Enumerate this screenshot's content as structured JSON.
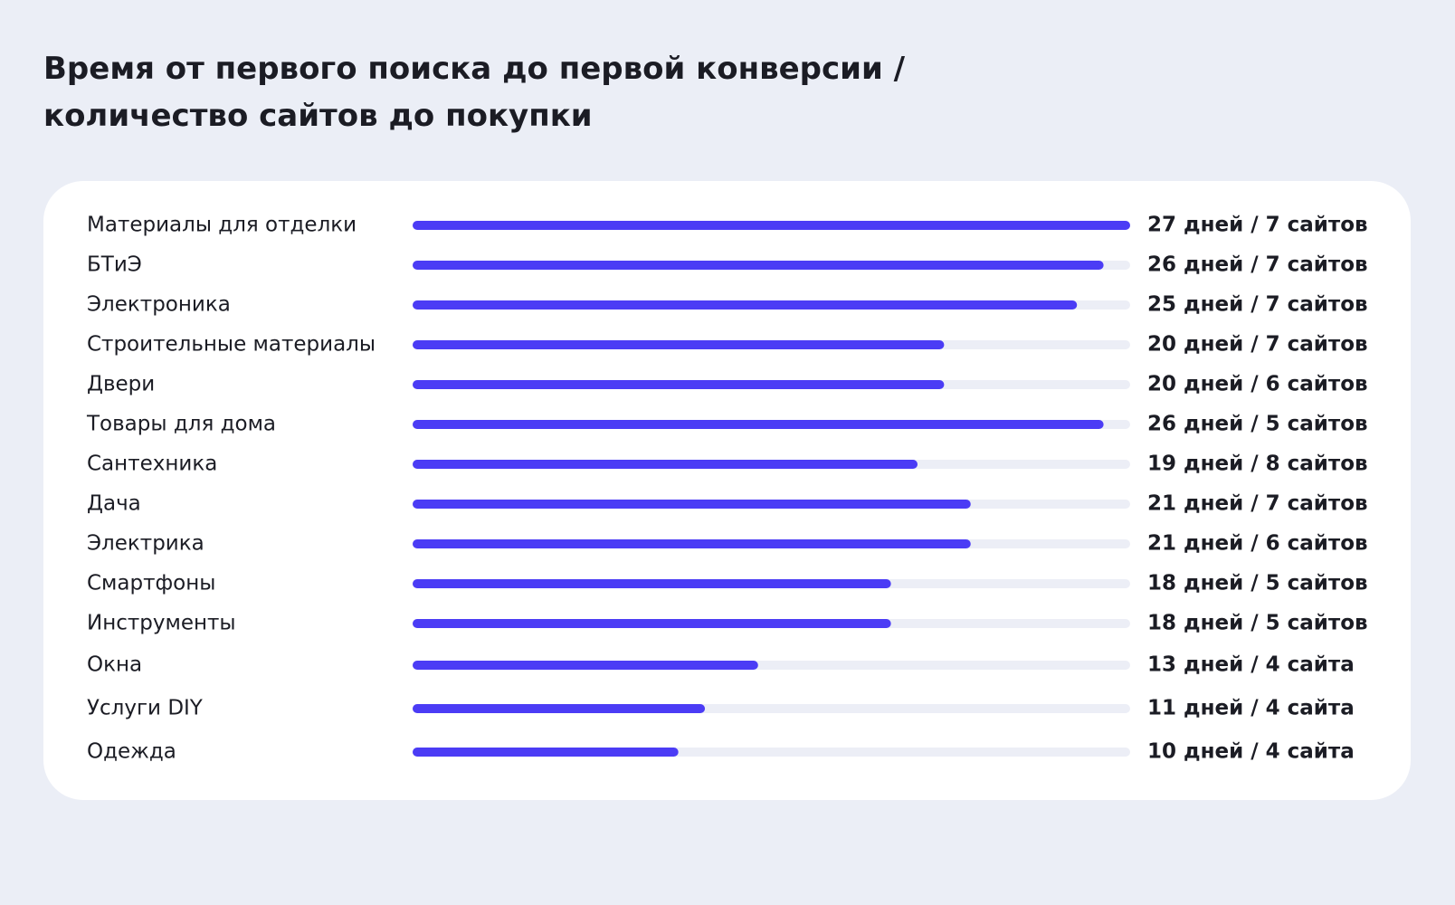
{
  "chart_data": {
    "type": "bar",
    "orientation": "horizontal",
    "title": "Время от первого поиска до первой конверсии / количество сайтов до покупки",
    "categories": [
      "Материалы для отделки",
      "БТиЭ",
      "Электроника",
      "Строительные материалы",
      "Двери",
      "Товары для дома",
      "Сантехника",
      "Дача",
      "Электрика",
      "Смартфоны",
      "Инструменты",
      "Окна",
      "Услуги DIY",
      "Одежда"
    ],
    "values": [
      27,
      26,
      25,
      20,
      20,
      26,
      19,
      21,
      21,
      18,
      18,
      13,
      11,
      10
    ],
    "value_labels": [
      "27 дней / 7 сайтов",
      "26 дней / 7 сайтов",
      "25 дней / 7 сайтов",
      "20 дней / 7 сайтов",
      "20 дней / 6 сайтов",
      "26 дней / 5 сайтов",
      "19 дней / 8 сайтов",
      "21 дней / 7 сайтов",
      "21 дней / 6 сайтов",
      "18 дней / 5 сайтов",
      "18 дней / 5 сайтов",
      "13 дней / 4 сайта",
      "11 дней / 4 сайта",
      "10 дней / 4 сайта"
    ],
    "color": "#4b3cf5",
    "xlim": [
      0,
      27
    ]
  }
}
